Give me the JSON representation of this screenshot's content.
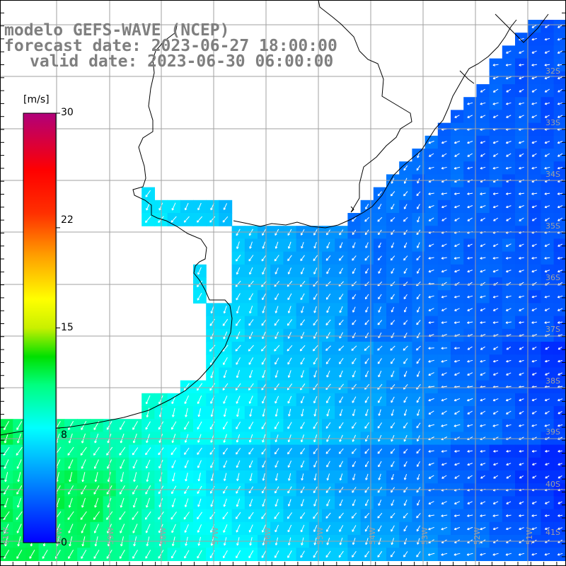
{
  "title": {
    "line1": "modelo GEFS-WAVE (NCEP)",
    "line2": "forecast date: 2023-06-27 18:00:00",
    "line3": "valid date: 2023-06-30 06:00:00"
  },
  "colorbar": {
    "unit": "[m/s]",
    "ticks": [
      {
        "value": 30,
        "label": "30"
      },
      {
        "value": 22,
        "label": "22"
      },
      {
        "value": 15,
        "label": "15"
      },
      {
        "value": 8,
        "label": "8"
      },
      {
        "value": 0,
        "label": "0"
      }
    ],
    "range": [
      0,
      30
    ],
    "colors": [
      "#0000ff",
      "#00a0ff",
      "#00ffff",
      "#00ff80",
      "#00d000",
      "#c0f000",
      "#ffff00",
      "#ffa000",
      "#ff4000",
      "#ff0000",
      "#e00070",
      "#b0007a"
    ]
  },
  "lat_labels": [
    "32S",
    "33S",
    "34S",
    "35S",
    "36S",
    "37S",
    "38S",
    "39S",
    "40S",
    "41S"
  ],
  "lon_labels": [
    "61W",
    "60W",
    "59W",
    "58W",
    "57W",
    "56W",
    "55W",
    "54W",
    "53W",
    "52W",
    "51W"
  ],
  "colors": {
    "grid": "#a0a0a0",
    "coast": "#000000",
    "label": "#a0a0a0",
    "title": "#7f7f7f",
    "arrow": "#ffffff"
  }
}
